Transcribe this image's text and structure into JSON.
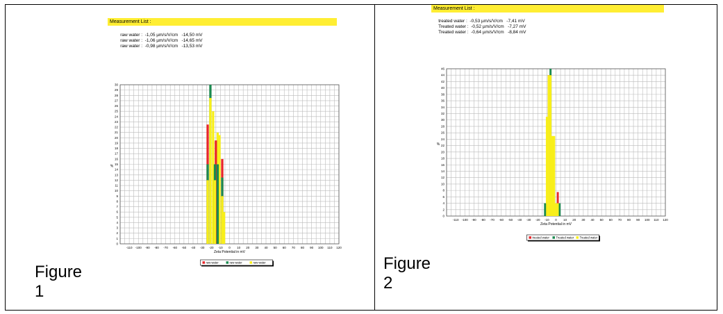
{
  "figures": [
    {
      "caption": "Figure 1",
      "measurement_title": "Measurement List :",
      "measurements": [
        {
          "label": "raw water :",
          "mobility": "-1,05 µm/s/V/cm",
          "potential": "-14,50 mV"
        },
        {
          "label": "raw water :",
          "mobility": "-1,06 µm/s/V/cm",
          "potential": "-14,65 mV"
        },
        {
          "label": "raw water :",
          "mobility": "-0,98 µm/s/V/cm",
          "potential": "-13,53 mV"
        }
      ]
    },
    {
      "caption": "Figure 2",
      "measurement_title": "Measurement List :",
      "measurements": [
        {
          "label": "treated water :",
          "mobility": "-0,53 µm/s/V/cm",
          "potential": "-7,41 mV"
        },
        {
          "label": "Treated water :",
          "mobility": "-0,52 µm/s/V/cm",
          "potential": "-7,27 mV"
        },
        {
          "label": "Treated water :",
          "mobility": "-0,64 µm/s/V/cm",
          "potential": "-8,84 mV"
        }
      ]
    }
  ],
  "chart_data": [
    {
      "type": "bar",
      "xlabel": "Zeta Potential in mV",
      "ylabel": "%",
      "xlim": [
        -120,
        120
      ],
      "ylim": [
        0,
        30
      ],
      "yticks_step": 1,
      "xticks": [
        -110,
        -100,
        -90,
        -80,
        -70,
        -60,
        -50,
        -40,
        -30,
        -20,
        -10,
        0,
        10,
        20,
        30,
        40,
        50,
        60,
        70,
        80,
        90,
        100,
        110,
        120
      ],
      "grid": true,
      "legend_position": "bottom",
      "bar_width": 2.5,
      "series": [
        {
          "name": "raw water",
          "color": "#e8262a",
          "x": [
            -24,
            -15,
            -8
          ],
          "values": [
            22.5,
            19.5,
            16
          ]
        },
        {
          "name": "raw water",
          "color": "#1b8a50",
          "x": [
            -24,
            -21,
            -16,
            -13,
            -8
          ],
          "values": [
            15,
            30,
            15,
            15,
            12.5
          ]
        },
        {
          "name": "raw water",
          "color": "#f8ef1a",
          "x": [
            -24,
            -21,
            -18,
            -16,
            -13,
            -11,
            -8,
            -6
          ],
          "values": [
            12,
            27.5,
            25,
            12,
            21,
            20.5,
            9,
            6
          ]
        }
      ]
    },
    {
      "type": "bar",
      "xlabel": "Zeta Potential in mV",
      "ylabel": "%",
      "xlim": [
        -120,
        120
      ],
      "ylim": [
        0,
        46
      ],
      "yticks_step": 2,
      "xticks": [
        -110,
        -100,
        -90,
        -80,
        -70,
        -60,
        -50,
        -40,
        -30,
        -20,
        -10,
        0,
        10,
        20,
        30,
        40,
        50,
        60,
        70,
        80,
        90,
        100,
        110,
        120
      ],
      "grid": true,
      "legend_position": "bottom",
      "bar_width": 2.2,
      "series": [
        {
          "name": "treated water",
          "color": "#e8262a",
          "x": [
            -8,
            2
          ],
          "values": [
            44,
            7.5
          ]
        },
        {
          "name": "Treated water",
          "color": "#1b8a50",
          "x": [
            -12,
            -6,
            4
          ],
          "values": [
            4,
            46,
            4
          ]
        },
        {
          "name": "Treated water",
          "color": "#f8ef1a",
          "x": [
            -10,
            -8,
            -6,
            -4,
            -2,
            0,
            2
          ],
          "values": [
            31,
            44,
            44,
            25,
            25,
            4,
            4
          ]
        }
      ]
    }
  ]
}
